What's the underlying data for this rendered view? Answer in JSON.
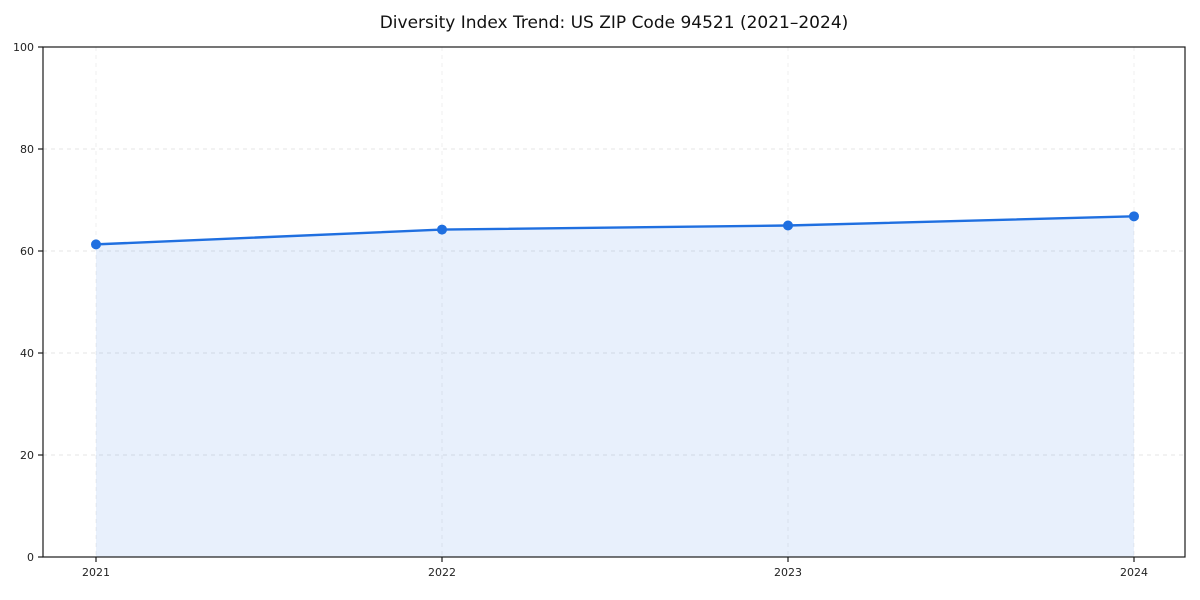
{
  "chart_data": {
    "type": "area",
    "title": "Diversity Index Trend: US ZIP Code 94521 (2021–2024)",
    "categories": [
      "2021",
      "2022",
      "2023",
      "2024"
    ],
    "x": [
      2021,
      2022,
      2023,
      2024
    ],
    "series": [
      {
        "name": "Diversity Index",
        "values": [
          61.3,
          64.2,
          65.0,
          66.8
        ]
      }
    ],
    "xlabel": "",
    "ylabel": "",
    "ylim": [
      0,
      100
    ],
    "yticks": [
      0,
      20,
      40,
      60,
      80,
      100
    ],
    "grid": true,
    "legend_position": "none",
    "colors": {
      "line": "#1f6fe0",
      "marker": "#1f6fe0",
      "fill": "#1f6fe0",
      "fill_opacity": 0.1,
      "grid": "#e4e4e4",
      "spine": "#1a1a1a",
      "tick_text": "#222222"
    }
  }
}
